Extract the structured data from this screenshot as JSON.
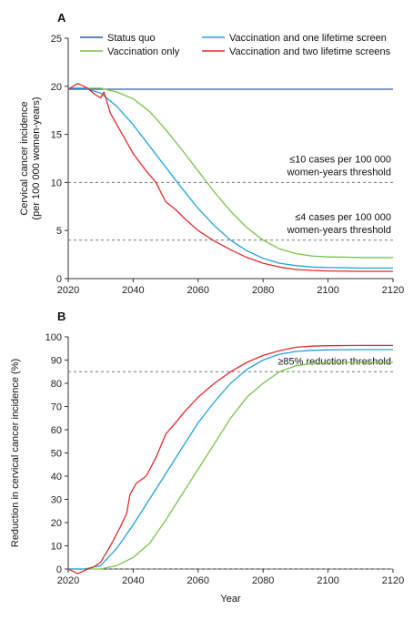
{
  "chart_data": [
    {
      "panel": "A",
      "type": "line",
      "ylabel_lines": [
        "Cervical cancer incidence",
        "(per 100 000 women-years)"
      ],
      "xlim": [
        2020,
        2120
      ],
      "ylim": [
        0,
        25
      ],
      "yticks": [
        "0",
        "5",
        "10",
        "15",
        "20",
        "25"
      ],
      "xticks": [
        "2020",
        "2040",
        "2060",
        "2080",
        "2100",
        "2120"
      ],
      "legend": [
        "Status quo",
        "Vaccination and one lifetime screen",
        "Vaccination only",
        "Vaccination and two lifetime screens"
      ],
      "series": [
        {
          "name": "Status quo",
          "color": "#2e5f9e",
          "points": [
            [
              2020,
              19.7
            ],
            [
              2120,
              19.7
            ]
          ]
        },
        {
          "name": "Vaccination only",
          "color": "#7cc24a",
          "points": [
            [
              2020,
              19.8
            ],
            [
              2025,
              19.8
            ],
            [
              2030,
              19.8
            ],
            [
              2035,
              19.4
            ],
            [
              2040,
              18.7
            ],
            [
              2045,
              17.4
            ],
            [
              2050,
              15.5
            ],
            [
              2055,
              13.4
            ],
            [
              2060,
              11.2
            ],
            [
              2065,
              9.0
            ],
            [
              2070,
              7.0
            ],
            [
              2075,
              5.3
            ],
            [
              2080,
              4.0
            ],
            [
              2085,
              3.1
            ],
            [
              2090,
              2.6
            ],
            [
              2095,
              2.35
            ],
            [
              2100,
              2.25
            ],
            [
              2110,
              2.2
            ],
            [
              2120,
              2.2
            ]
          ]
        },
        {
          "name": "Vaccination and one lifetime screen",
          "color": "#1fa3d8",
          "points": [
            [
              2020,
              19.8
            ],
            [
              2025,
              19.8
            ],
            [
              2030,
              19.3
            ],
            [
              2035,
              17.9
            ],
            [
              2040,
              16.0
            ],
            [
              2045,
              13.8
            ],
            [
              2050,
              11.6
            ],
            [
              2055,
              9.4
            ],
            [
              2060,
              7.3
            ],
            [
              2065,
              5.5
            ],
            [
              2070,
              4.0
            ],
            [
              2075,
              2.9
            ],
            [
              2080,
              2.1
            ],
            [
              2085,
              1.6
            ],
            [
              2090,
              1.35
            ],
            [
              2095,
              1.2
            ],
            [
              2100,
              1.15
            ],
            [
              2110,
              1.1
            ],
            [
              2120,
              1.1
            ]
          ]
        },
        {
          "name": "Vaccination and two lifetime screens",
          "color": "#e32b2b",
          "points": [
            [
              2020,
              19.7
            ],
            [
              2023,
              20.3
            ],
            [
              2026,
              19.8
            ],
            [
              2028,
              19.2
            ],
            [
              2030,
              18.8
            ],
            [
              2031,
              19.4
            ],
            [
              2033,
              17.2
            ],
            [
              2036,
              15.4
            ],
            [
              2040,
              13.0
            ],
            [
              2044,
              11.2
            ],
            [
              2047,
              10.0
            ],
            [
              2050,
              8.0
            ],
            [
              2053,
              7.2
            ],
            [
              2056,
              6.2
            ],
            [
              2060,
              5.0
            ],
            [
              2065,
              3.9
            ],
            [
              2070,
              3.0
            ],
            [
              2075,
              2.2
            ],
            [
              2080,
              1.6
            ],
            [
              2085,
              1.2
            ],
            [
              2090,
              0.95
            ],
            [
              2095,
              0.85
            ],
            [
              2100,
              0.8
            ],
            [
              2110,
              0.75
            ],
            [
              2120,
              0.75
            ]
          ]
        }
      ],
      "thresholds": [
        {
          "value": 10,
          "label_lines": [
            "≤10 cases per 100 000",
            "women-years threshold"
          ]
        },
        {
          "value": 4,
          "label_lines": [
            "≤4 cases per 100 000",
            "women-years threshold"
          ]
        }
      ]
    },
    {
      "panel": "B",
      "type": "line",
      "ylabel": "Reduction in cervical cancer incidence (%)",
      "xlabel": "Year",
      "xlim": [
        2020,
        2120
      ],
      "ylim": [
        0,
        100
      ],
      "yticks": [
        "0",
        "10",
        "20",
        "30",
        "40",
        "50",
        "60",
        "70",
        "80",
        "90",
        "100"
      ],
      "xticks": [
        "2020",
        "2040",
        "2060",
        "2080",
        "2100",
        "2120"
      ],
      "series": [
        {
          "name": "Vaccination only",
          "color": "#7cc24a",
          "points": [
            [
              2020,
              0
            ],
            [
              2025,
              0
            ],
            [
              2030,
              0
            ],
            [
              2035,
              1.5
            ],
            [
              2040,
              5
            ],
            [
              2045,
              11
            ],
            [
              2050,
              21
            ],
            [
              2055,
              32
            ],
            [
              2060,
              43
            ],
            [
              2065,
              54
            ],
            [
              2070,
              65
            ],
            [
              2075,
              74
            ],
            [
              2080,
              80
            ],
            [
              2085,
              85
            ],
            [
              2090,
              87.5
            ],
            [
              2095,
              88.5
            ],
            [
              2100,
              89
            ],
            [
              2110,
              89
            ],
            [
              2120,
              89
            ]
          ]
        },
        {
          "name": "Vaccination and one lifetime screen",
          "color": "#1fa3d8",
          "points": [
            [
              2020,
              0
            ],
            [
              2025,
              0
            ],
            [
              2030,
              1.5
            ],
            [
              2035,
              9
            ],
            [
              2040,
              19
            ],
            [
              2045,
              30
            ],
            [
              2050,
              41
            ],
            [
              2055,
              52
            ],
            [
              2060,
              63
            ],
            [
              2065,
              72
            ],
            [
              2070,
              80
            ],
            [
              2075,
              86
            ],
            [
              2080,
              90
            ],
            [
              2085,
              92.5
            ],
            [
              2090,
              93.7
            ],
            [
              2095,
              94.2
            ],
            [
              2100,
              94.4
            ],
            [
              2110,
              94.5
            ],
            [
              2120,
              94.5
            ]
          ]
        },
        {
          "name": "Vaccination and two lifetime screens",
          "color": "#e32b2b",
          "points": [
            [
              2020,
              0
            ],
            [
              2023,
              -2
            ],
            [
              2026,
              0
            ],
            [
              2028,
              1
            ],
            [
              2030,
              3
            ],
            [
              2033,
              10
            ],
            [
              2036,
              18
            ],
            [
              2038,
              24
            ],
            [
              2039,
              32
            ],
            [
              2041,
              37
            ],
            [
              2044,
              40
            ],
            [
              2047,
              48
            ],
            [
              2050,
              58
            ],
            [
              2053,
              63
            ],
            [
              2056,
              68
            ],
            [
              2060,
              74
            ],
            [
              2065,
              80
            ],
            [
              2070,
              85
            ],
            [
              2075,
              89
            ],
            [
              2080,
              92
            ],
            [
              2085,
              94
            ],
            [
              2090,
              95.5
            ],
            [
              2095,
              96
            ],
            [
              2100,
              96.2
            ],
            [
              2110,
              96.3
            ],
            [
              2120,
              96.3
            ]
          ]
        }
      ],
      "thresholds": [
        {
          "value": 85,
          "label_lines": [
            "≥85% reduction threshold"
          ]
        },
        {
          "value": 0,
          "label_lines": []
        }
      ]
    }
  ]
}
